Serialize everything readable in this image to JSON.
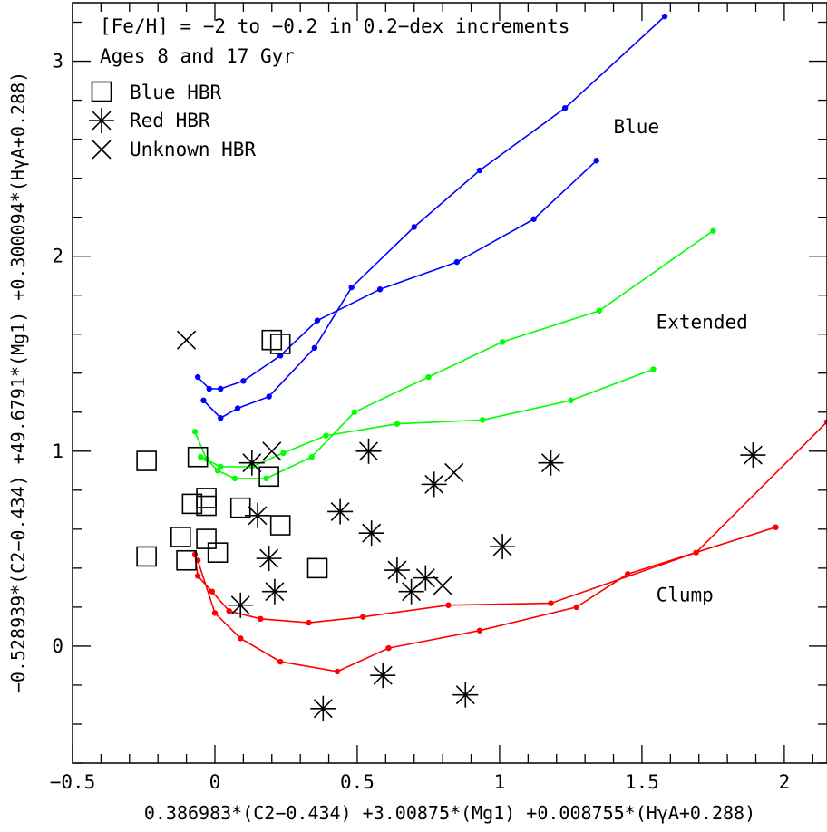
{
  "chart_data": {
    "type": "scatter",
    "notes": [
      "[Fe/H] = −2 to −0.2 in 0.2−dex increments",
      "Ages 8 and 17 Gyr"
    ],
    "xlabel": "0.386983*(C2−0.434) +3.00875*(Mg1) +0.008755*(HγA+0.288)",
    "ylabel": "−0.528939*(C2−0.434) +49.6791*(Mg1) +0.300094*(HγA+0.288)",
    "xlim": [
      -0.5,
      2.15
    ],
    "ylim": [
      -0.6,
      3.3
    ],
    "x_ticks": [
      -0.5,
      0,
      0.5,
      1,
      1.5,
      2
    ],
    "x_tick_labels": [
      "−0.5",
      "0",
      "0.5",
      "1",
      "1.5",
      "2"
    ],
    "y_ticks": [
      0,
      1,
      2,
      3
    ],
    "y_tick_labels": [
      "0",
      "1",
      "2",
      "3"
    ],
    "legend": [
      {
        "symbol": "square",
        "label": "Blue HBR"
      },
      {
        "symbol": "asterisk",
        "label": "Red HBR"
      },
      {
        "symbol": "cross",
        "label": "Unknown HBR"
      }
    ],
    "region_labels": [
      {
        "text": "Blue",
        "x": 1.4,
        "y": 2.63
      },
      {
        "text": "Extended",
        "x": 1.55,
        "y": 1.63
      },
      {
        "text": "Clump",
        "x": 1.55,
        "y": 0.23
      }
    ],
    "lines": [
      {
        "color": "#0000ff",
        "points": [
          [
            -0.06,
            1.38
          ],
          [
            -0.02,
            1.32
          ],
          [
            0.02,
            1.32
          ],
          [
            0.1,
            1.36
          ],
          [
            0.23,
            1.49
          ],
          [
            0.36,
            1.67
          ],
          [
            0.58,
            1.83
          ],
          [
            0.85,
            1.97
          ],
          [
            1.12,
            2.19
          ],
          [
            1.34,
            2.49
          ]
        ]
      },
      {
        "color": "#0000ff",
        "points": [
          [
            -0.04,
            1.26
          ],
          [
            0.02,
            1.17
          ],
          [
            0.08,
            1.22
          ],
          [
            0.19,
            1.28
          ],
          [
            0.35,
            1.53
          ],
          [
            0.48,
            1.84
          ],
          [
            0.7,
            2.15
          ],
          [
            0.93,
            2.44
          ],
          [
            1.23,
            2.76
          ],
          [
            1.58,
            3.23
          ]
        ]
      },
      {
        "color": "#00ff00",
        "points": [
          [
            -0.07,
            1.1
          ],
          [
            -0.03,
            0.96
          ],
          [
            0.01,
            0.9
          ],
          [
            0.07,
            0.86
          ],
          [
            0.18,
            0.86
          ],
          [
            0.34,
            0.97
          ],
          [
            0.49,
            1.2
          ],
          [
            0.75,
            1.38
          ],
          [
            1.01,
            1.56
          ],
          [
            1.35,
            1.72
          ],
          [
            1.75,
            2.13
          ]
        ]
      },
      {
        "color": "#00ff00",
        "points": [
          [
            -0.05,
            0.97
          ],
          [
            0.02,
            0.92
          ],
          [
            0.13,
            0.92
          ],
          [
            0.24,
            0.99
          ],
          [
            0.39,
            1.08
          ],
          [
            0.64,
            1.14
          ],
          [
            0.94,
            1.16
          ],
          [
            1.25,
            1.26
          ],
          [
            1.54,
            1.42
          ]
        ]
      },
      {
        "color": "#ff0000",
        "points": [
          [
            -0.07,
            0.47
          ],
          [
            -0.06,
            0.36
          ],
          [
            -0.01,
            0.28
          ],
          [
            0.05,
            0.18
          ],
          [
            0.16,
            0.14
          ],
          [
            0.33,
            0.12
          ],
          [
            0.52,
            0.15
          ],
          [
            0.82,
            0.21
          ],
          [
            1.18,
            0.22
          ],
          [
            1.69,
            0.48
          ],
          [
            2.15,
            1.15
          ]
        ]
      },
      {
        "color": "#ff0000",
        "points": [
          [
            -0.06,
            0.44
          ],
          [
            0.0,
            0.17
          ],
          [
            0.09,
            0.04
          ],
          [
            0.23,
            -0.08
          ],
          [
            0.43,
            -0.13
          ],
          [
            0.61,
            -0.01
          ],
          [
            0.93,
            0.08
          ],
          [
            1.27,
            0.2
          ],
          [
            1.45,
            0.37
          ],
          [
            1.97,
            0.61
          ]
        ]
      }
    ],
    "series": [
      {
        "name": "Blue HBR",
        "marker": "square",
        "points": [
          [
            -0.24,
            0.95
          ],
          [
            -0.24,
            0.46
          ],
          [
            -0.12,
            0.56
          ],
          [
            -0.1,
            0.44
          ],
          [
            -0.08,
            0.73
          ],
          [
            -0.06,
            0.97
          ],
          [
            -0.03,
            0.76
          ],
          [
            -0.03,
            0.72
          ],
          [
            -0.03,
            0.55
          ],
          [
            0.01,
            0.48
          ],
          [
            0.09,
            0.71
          ],
          [
            0.19,
            0.87
          ],
          [
            0.2,
            1.57
          ],
          [
            0.23,
            1.55
          ],
          [
            0.23,
            0.62
          ],
          [
            0.36,
            0.4
          ]
        ]
      },
      {
        "name": "Red HBR",
        "marker": "asterisk",
        "points": [
          [
            0.09,
            0.21
          ],
          [
            0.13,
            0.94
          ],
          [
            0.15,
            0.67
          ],
          [
            0.19,
            0.45
          ],
          [
            0.21,
            0.28
          ],
          [
            0.38,
            -0.32
          ],
          [
            0.44,
            0.69
          ],
          [
            0.54,
            1.0
          ],
          [
            0.55,
            0.58
          ],
          [
            0.59,
            -0.15
          ],
          [
            0.64,
            0.39
          ],
          [
            0.69,
            0.28
          ],
          [
            0.74,
            0.35
          ],
          [
            0.77,
            0.83
          ],
          [
            0.88,
            -0.25
          ],
          [
            1.01,
            0.51
          ],
          [
            1.18,
            0.94
          ],
          [
            1.89,
            0.98
          ]
        ]
      },
      {
        "name": "Unknown HBR",
        "marker": "cross",
        "points": [
          [
            -0.1,
            1.57
          ],
          [
            0.2,
            1.0
          ],
          [
            0.84,
            0.89
          ],
          [
            0.8,
            0.31
          ]
        ]
      }
    ]
  }
}
